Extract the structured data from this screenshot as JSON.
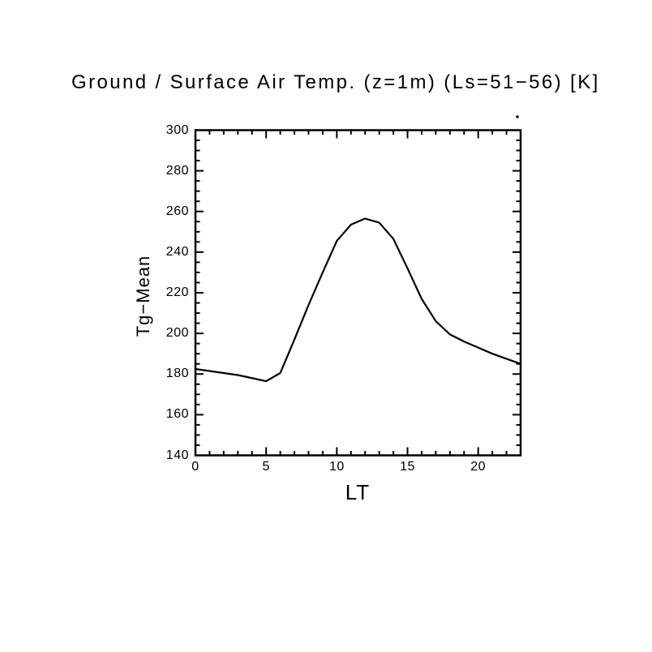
{
  "window": {
    "background_color": "#ffffff",
    "foreground_color": "#000000"
  },
  "chart_data": {
    "type": "line",
    "title": "Ground / Surface Air Temp. (z=1m) (Ls=51−56) [K]",
    "xlabel": "LT",
    "ylabel": "Tg−Mean",
    "grid": false,
    "legend": "none",
    "line_color": "#000000",
    "xlim": [
      0,
      23
    ],
    "ylim": [
      140,
      300
    ],
    "x_major_ticks": [
      0,
      5,
      10,
      15,
      20
    ],
    "x_minor_step": 1,
    "y_major_ticks": [
      140,
      160,
      180,
      200,
      220,
      240,
      260,
      280,
      300
    ],
    "y_minor_step": 5,
    "x": [
      0,
      1,
      2,
      3,
      4,
      5,
      6,
      7,
      8,
      9,
      10,
      11,
      12,
      13,
      14,
      15,
      16,
      17,
      18,
      19,
      20,
      21,
      22,
      23
    ],
    "series": [
      {
        "name": "Tg-Mean",
        "values": [
          182.5,
          181.5,
          180.5,
          179.5,
          178.0,
          176.5,
          180.5,
          197.0,
          214.0,
          230.0,
          245.5,
          253.5,
          256.5,
          254.5,
          246.5,
          232.0,
          217.0,
          206.0,
          199.5,
          196.0,
          193.0,
          190.0,
          187.5,
          185.0
        ]
      }
    ],
    "annotations": [
      {
        "name": "stray-dot",
        "description": "small dot artifact above top-right corner of plot box"
      }
    ]
  }
}
